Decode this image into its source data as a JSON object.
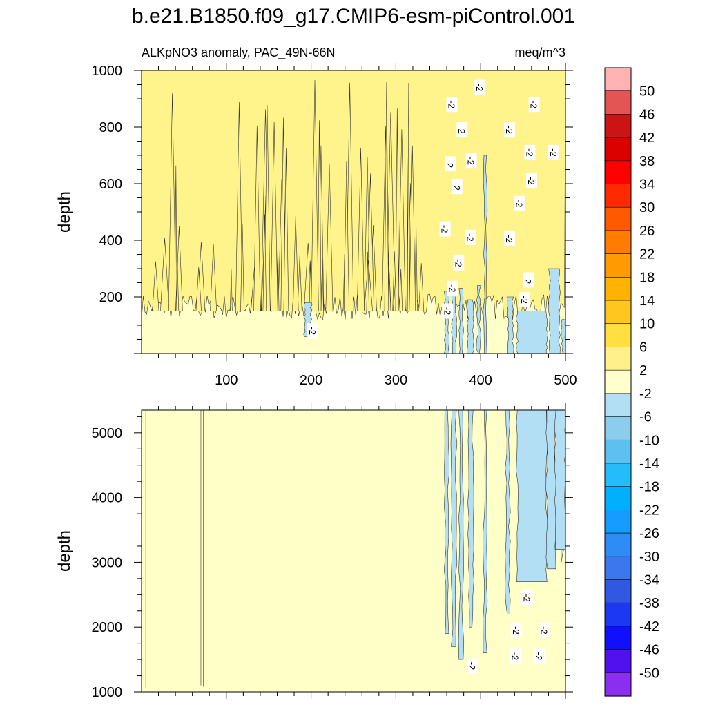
{
  "figure": {
    "title": "b.e21.B1850.f09_g17.CMIP6-esm-piControl.001",
    "subtitle_left": "ALKpNO3 anomaly, PAC_49N-66N",
    "subtitle_right": "meq/m^3"
  },
  "chart_data": [
    {
      "type": "heatmap",
      "panel": "upper",
      "xlabel": "",
      "ylabel": "depth",
      "xlim": [
        0,
        500
      ],
      "ylim": [
        1000,
        0
      ],
      "x_ticks": [
        100,
        200,
        300,
        400,
        500
      ],
      "y_ticks": [
        200,
        400,
        600,
        800,
        1000
      ],
      "contour_label": "-2",
      "blue_bands": [
        {
          "x0": 358,
          "x1": 362,
          "depth_top": 220
        },
        {
          "x0": 366,
          "x1": 371,
          "depth_top": 210
        },
        {
          "x0": 375,
          "x1": 379,
          "depth_top": 230
        },
        {
          "x0": 385,
          "x1": 391,
          "depth_top": 190
        },
        {
          "x0": 396,
          "x1": 399,
          "depth_top": 240
        },
        {
          "x0": 404,
          "x1": 407,
          "depth_top": 700
        },
        {
          "x0": 432,
          "x1": 438,
          "depth_top": 200
        },
        {
          "x0": 443,
          "x1": 478,
          "depth_top": 150
        },
        {
          "x0": 481,
          "x1": 493,
          "depth_top": 300
        },
        {
          "x0": 496,
          "x1": 500,
          "depth_top": 120
        },
        {
          "x0": 192,
          "x1": 200,
          "depth_top": 60,
          "depth_bottom": 180
        }
      ],
      "contour_labels_at": [
        {
          "x": 202,
          "depth": 80
        },
        {
          "x": 361,
          "depth": 150
        },
        {
          "x": 367,
          "depth": 230
        },
        {
          "x": 374,
          "depth": 320
        },
        {
          "x": 358,
          "depth": 440
        },
        {
          "x": 388,
          "depth": 410
        },
        {
          "x": 434,
          "depth": 405
        },
        {
          "x": 452,
          "depth": 190
        },
        {
          "x": 456,
          "depth": 260
        },
        {
          "x": 446,
          "depth": 530
        },
        {
          "x": 372,
          "depth": 590
        },
        {
          "x": 364,
          "depth": 670
        },
        {
          "x": 389,
          "depth": 680
        },
        {
          "x": 460,
          "depth": 610
        },
        {
          "x": 458,
          "depth": 710
        },
        {
          "x": 486,
          "depth": 710
        },
        {
          "x": 378,
          "depth": 790
        },
        {
          "x": 434,
          "depth": 790
        },
        {
          "x": 366,
          "depth": 880
        },
        {
          "x": 463,
          "depth": 880
        },
        {
          "x": 399,
          "depth": 940
        }
      ]
    },
    {
      "type": "heatmap",
      "panel": "lower",
      "xlabel": "",
      "ylabel": "depth",
      "xlim": [
        0,
        500
      ],
      "ylim": [
        5350,
        1000
      ],
      "y_ticks": [
        1000,
        2000,
        3000,
        4000,
        5000
      ],
      "contour_label": "-2",
      "blue_bands": [
        {
          "x0": 358,
          "x1": 362,
          "depth_bottom": 1900
        },
        {
          "x0": 366,
          "x1": 371,
          "depth_bottom": 1700
        },
        {
          "x0": 375,
          "x1": 379,
          "depth_bottom": 1500
        },
        {
          "x0": 386,
          "x1": 391,
          "depth_bottom": 2000
        },
        {
          "x0": 404,
          "x1": 407,
          "depth_bottom": 1600
        },
        {
          "x0": 430,
          "x1": 434,
          "depth_bottom": 2200
        },
        {
          "x0": 443,
          "x1": 478,
          "depth_bottom": 2700
        },
        {
          "x0": 478,
          "x1": 488,
          "depth_bottom": 2900
        },
        {
          "x0": 488,
          "x1": 500,
          "depth_bottom": 3200
        }
      ],
      "contour_labels_at": [
        {
          "x": 390,
          "depth": 1400
        },
        {
          "x": 441,
          "depth": 1550
        },
        {
          "x": 469,
          "depth": 1550
        },
        {
          "x": 442,
          "depth": 1950
        },
        {
          "x": 475,
          "depth": 1950
        },
        {
          "x": 455,
          "depth": 2450
        }
      ]
    }
  ],
  "colorbar": {
    "labels": [
      "50",
      "46",
      "42",
      "38",
      "34",
      "30",
      "26",
      "22",
      "18",
      "14",
      "10",
      "6",
      "2",
      "-2",
      "-6",
      "-10",
      "-14",
      "-18",
      "-22",
      "-26",
      "-30",
      "-34",
      "-38",
      "-42",
      "-46",
      "-50"
    ],
    "colors": [
      "#ffb3b3",
      "#e35454",
      "#cc1414",
      "#dd0000",
      "#ff0000",
      "#ff2a00",
      "#ff5a00",
      "#ff7c00",
      "#ff9a00",
      "#ffb300",
      "#ffc61e",
      "#ffe040",
      "#fff08c",
      "#ffffcc",
      "#b3dff5",
      "#8ccdee",
      "#5cc0f0",
      "#25bcfb",
      "#00b0ff",
      "#149cff",
      "#2d8cf5",
      "#3b78ee",
      "#3158e0",
      "#1c38f0",
      "#1010ff",
      "#5010f0",
      "#8c2ef0"
    ]
  }
}
